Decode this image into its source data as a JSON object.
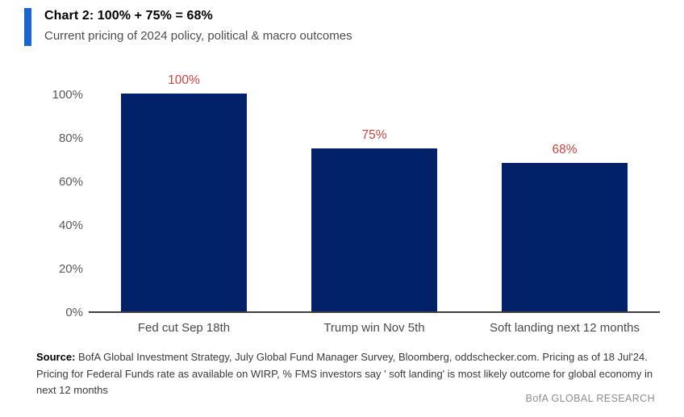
{
  "header": {
    "title": "Chart 2: 100% + 75% = 68%",
    "subtitle": "Current pricing of 2024 policy, political & macro outcomes"
  },
  "chart_data": {
    "type": "bar",
    "categories": [
      "Fed cut Sep 18th",
      "Trump win Nov 5th",
      "Soft landing next 12 months"
    ],
    "values": [
      100,
      75,
      68
    ],
    "value_labels": [
      "100%",
      "75%",
      "68%"
    ],
    "title": "Chart 2: 100% + 75% = 68%",
    "subtitle": "Current pricing of 2024 policy, political & macro outcomes",
    "xlabel": "",
    "ylabel": "",
    "ylim": [
      0,
      100
    ],
    "ytick_values": [
      100,
      80,
      60,
      40,
      20,
      0
    ],
    "ytick_labels": [
      "100%",
      "80%",
      "60%",
      "40%",
      "20%",
      "0%"
    ],
    "grid": false,
    "legend": false,
    "bar_color": "#012169",
    "value_label_color": "#cc4540"
  },
  "footer": {
    "source_label": "Source:",
    "source_text": " BofA Global Investment Strategy, July Global Fund Manager Survey, Bloomberg, oddschecker.com. Pricing as of 18 Jul'24. Pricing for Federal Funds rate as available on WIRP, % FMS investors say ' soft landing' is most likely outcome for global economy in next 12 months",
    "branding": "BofA GLOBAL RESEARCH"
  },
  "colors": {
    "accent_bar": "#1764d2",
    "bar": "#012169",
    "value_label": "#cc4540",
    "axis_line": "#3f3f3f",
    "tick_text": "#595959",
    "subtitle_text": "#4d4d4d",
    "branding_text": "#8e8e8e"
  }
}
